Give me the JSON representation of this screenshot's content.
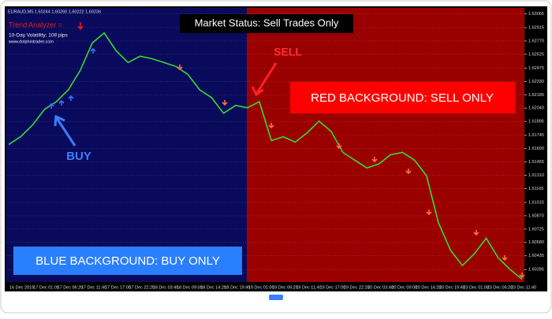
{
  "chart_data": {
    "type": "line",
    "header": "EURAUD,M5 1.60244 1.60260 1.60222 1.60236",
    "indicator_name": "Trend Analyzer =",
    "volatility": "10-Day Volatility: 108 pips",
    "website": "www.dolphintrader.com",
    "status": "Market Status: Sell Trades Only",
    "annotations": [
      "SELL",
      "BUY",
      "RED BACKGROUND: SELL ONLY",
      "BLUE BACKGROUND: BUY ONLY"
    ],
    "categories": [
      "16 Dec 2019",
      null,
      "17 Dec 01:00",
      null,
      "17 Dec 06:20",
      null,
      "17 Dec 11:40",
      null,
      "17 Dec 17:00",
      null,
      "17 Dec 22:20",
      null,
      "18 Dec 03:40",
      null,
      "18 Dec 09:00",
      null,
      "18 Dec 14:20",
      null,
      "18 Dec 19:40",
      null,
      "19 Dec 01:00",
      null,
      "19 Dec 06:20",
      null,
      "19 Dec 11:40",
      null,
      "19 Dec 17:00",
      null,
      "19 Dec 22:20",
      null,
      "20 Dec 03:40",
      null,
      "20 Dec 09:00",
      null,
      "20 Dec 14:20",
      null,
      "20 Dec 19:40",
      null,
      "23 Dec 01:00",
      null,
      "23 Dec 06:20",
      null,
      "23 Dec 11:40",
      null
    ],
    "series": [
      {
        "name": "EURAUD",
        "color": "#33dd33",
        "values": [
          1.61644,
          1.61729,
          1.61857,
          1.62026,
          1.62111,
          1.62239,
          1.62451,
          1.62748,
          1.62858,
          1.62663,
          1.62536,
          1.62604,
          1.62578,
          1.62536,
          1.62494,
          1.62408,
          1.62239,
          1.62154,
          1.61984,
          1.62069,
          1.62044,
          1.62111,
          1.61687,
          1.61729,
          1.6167,
          1.61772,
          1.61899,
          1.61789,
          1.61559,
          1.61474,
          1.6139,
          1.61432,
          1.61534,
          1.61559,
          1.61474,
          1.61305,
          1.60795,
          1.60498,
          1.60328,
          1.60456,
          1.60626,
          1.60413,
          1.60286,
          1.6018
        ]
      }
    ],
    "ylim": [
      1.6015,
      1.6313
    ],
    "yticks": [
      1.63065,
      1.62915,
      {
        "value": 1.6277,
        "label": "1.62770"
      },
      1.62625,
      1.62475,
      {
        "value": 1.6233,
        "label": "1.62330"
      },
      1.62185,
      {
        "value": 1.6204,
        "label": "1.62040"
      },
      1.61895,
      1.61745,
      {
        "value": 1.616,
        "label": "1.61600"
      },
      1.61455,
      {
        "value": 1.6131,
        "label": "1.61310"
      },
      1.61165,
      1.61015,
      {
        "value": 1.6087,
        "label": "1.60870"
      },
      1.60725,
      {
        "value": 1.6058,
        "label": "1.60580"
      },
      1.60435,
      1.60285
    ],
    "grid": true
  }
}
